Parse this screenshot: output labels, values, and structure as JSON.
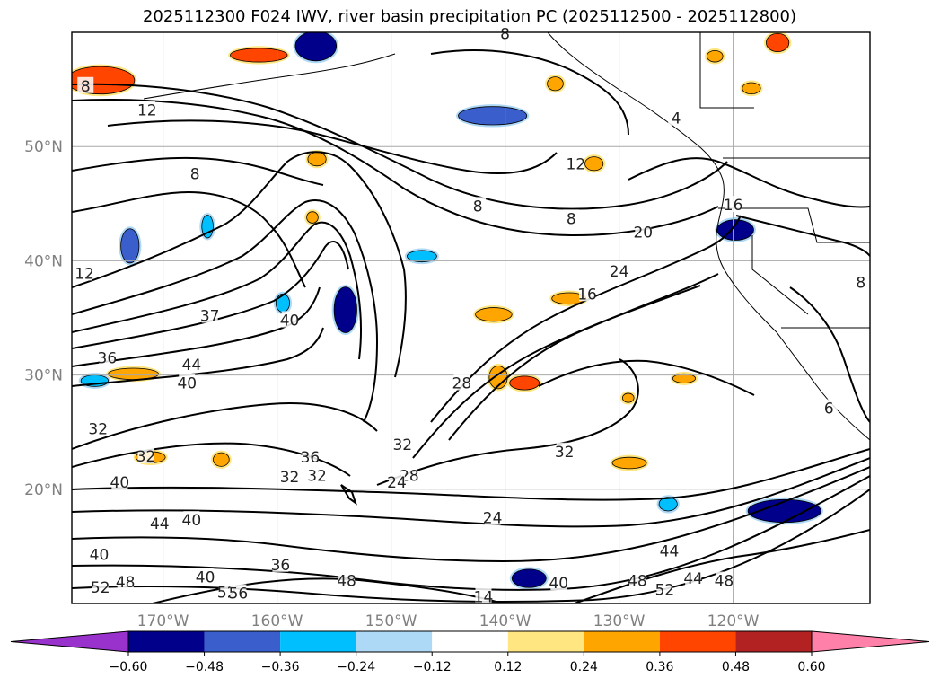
{
  "chart_data": {
    "type": "heatmap",
    "title": "2025112300 F024 IWV, river basin precipitation PC (2025112500 - 2025112800)",
    "x_axis": {
      "unit": "longitude",
      "range": [
        -178,
        -108
      ],
      "ticks": [
        -170,
        -160,
        -150,
        -140,
        -130,
        -120
      ],
      "tick_labels": [
        "170°W",
        "160°W",
        "150°W",
        "140°W",
        "130°W",
        "120°W"
      ]
    },
    "y_axis": {
      "unit": "latitude",
      "range": [
        10,
        60
      ],
      "ticks": [
        20,
        30,
        40,
        50
      ],
      "tick_labels": [
        "20°N",
        "30°N",
        "40°N",
        "50°N"
      ]
    },
    "grid": true,
    "colorbar": {
      "orientation": "horizontal",
      "extend": "both",
      "bounds": [
        -0.6,
        -0.48,
        -0.36,
        -0.24,
        -0.12,
        0.12,
        0.24,
        0.36,
        0.48,
        0.6
      ],
      "tick_labels": [
        "−0.60",
        "−0.48",
        "−0.36",
        "−0.24",
        "−0.12",
        "0.12",
        "0.24",
        "0.36",
        "0.48",
        "0.60"
      ],
      "colors": [
        "#9932CC",
        "#00008B",
        "#3A5FCD",
        "#00BFFF",
        "#ADD8F6",
        "#FFFFFF",
        "#FFE680",
        "#FFA500",
        "#FF4500",
        "#B22222",
        "#FF80A8"
      ]
    },
    "contour_labels": [
      {
        "text": "8",
        "lon": -176.8,
        "lat": 55.3
      },
      {
        "text": "12",
        "lon": -171.4,
        "lat": 53.2
      },
      {
        "text": "8",
        "lon": -167.2,
        "lat": 47.6
      },
      {
        "text": "12",
        "lon": -176.9,
        "lat": 38.9
      },
      {
        "text": "36",
        "lon": -174.9,
        "lat": 31.5
      },
      {
        "text": "44",
        "lon": -167.5,
        "lat": 30.9
      },
      {
        "text": "40",
        "lon": -167.9,
        "lat": 29.3
      },
      {
        "text": "37",
        "lon": -165.9,
        "lat": 35.2
      },
      {
        "text": "40",
        "lon": -158.9,
        "lat": 34.8
      },
      {
        "text": "32",
        "lon": -175.7,
        "lat": 25.3
      },
      {
        "text": "32",
        "lon": -171.5,
        "lat": 22.9
      },
      {
        "text": "40",
        "lon": -173.8,
        "lat": 20.6
      },
      {
        "text": "36",
        "lon": -157.1,
        "lat": 22.8
      },
      {
        "text": "32",
        "lon": -158.9,
        "lat": 21.1
      },
      {
        "text": "32",
        "lon": -156.5,
        "lat": 21.2
      },
      {
        "text": "32",
        "lon": -149.0,
        "lat": 23.9
      },
      {
        "text": "28",
        "lon": -148.4,
        "lat": 21.2
      },
      {
        "text": "24",
        "lon": -149.5,
        "lat": 20.6
      },
      {
        "text": "44",
        "lon": -170.3,
        "lat": 17.0
      },
      {
        "text": "40",
        "lon": -167.5,
        "lat": 17.3
      },
      {
        "text": "40",
        "lon": -175.6,
        "lat": 14.3
      },
      {
        "text": "52",
        "lon": -175.5,
        "lat": 11.4
      },
      {
        "text": "48",
        "lon": -173.3,
        "lat": 11.9
      },
      {
        "text": "40",
        "lon": -166.3,
        "lat": 12.3
      },
      {
        "text": "36",
        "lon": -159.7,
        "lat": 13.4
      },
      {
        "text": "52",
        "lon": -164.4,
        "lat": 11.0
      },
      {
        "text": "56",
        "lon": -163.4,
        "lat": 10.9
      },
      {
        "text": "48",
        "lon": -153.9,
        "lat": 12.0
      },
      {
        "text": "24",
        "lon": -141.1,
        "lat": 17.5
      },
      {
        "text": "14",
        "lon": -141.9,
        "lat": 10.6
      },
      {
        "text": "40",
        "lon": -135.3,
        "lat": 11.8
      },
      {
        "text": "48",
        "lon": -128.4,
        "lat": 12.0
      },
      {
        "text": "52",
        "lon": -126.0,
        "lat": 11.2
      },
      {
        "text": "44",
        "lon": -123.5,
        "lat": 12.2
      },
      {
        "text": "48",
        "lon": -120.8,
        "lat": 12.0
      },
      {
        "text": "44",
        "lon": -125.6,
        "lat": 14.6
      },
      {
        "text": "28",
        "lon": -143.8,
        "lat": 29.3
      },
      {
        "text": "32",
        "lon": -134.8,
        "lat": 23.3
      },
      {
        "text": "16",
        "lon": -132.8,
        "lat": 37.1
      },
      {
        "text": "24",
        "lon": -130.0,
        "lat": 39.1
      },
      {
        "text": "20",
        "lon": -127.9,
        "lat": 42.5
      },
      {
        "text": "12",
        "lon": -133.8,
        "lat": 48.5
      },
      {
        "text": "8",
        "lon": -134.2,
        "lat": 43.7
      },
      {
        "text": "8",
        "lon": -142.4,
        "lat": 44.8
      },
      {
        "text": "16",
        "lon": -120.0,
        "lat": 44.9
      },
      {
        "text": "8",
        "lon": -108.8,
        "lat": 38.1
      },
      {
        "text": "6",
        "lon": -111.6,
        "lat": 27.1
      },
      {
        "text": "8",
        "lon": -140.0,
        "lat": 59.9
      },
      {
        "text": "4",
        "lon": -125.0,
        "lat": 52.5
      }
    ],
    "precip_pc_patches": [
      {
        "lon": -156.6,
        "lat": 58.8,
        "rx": 1.8,
        "ry": 1.3,
        "value": -0.5
      },
      {
        "lon": -141.1,
        "lat": 52.7,
        "rx": 3.0,
        "ry": 0.8,
        "value": -0.4
      },
      {
        "lon": -154.0,
        "lat": 35.7,
        "rx": 1.0,
        "ry": 2.0,
        "value": -0.5
      },
      {
        "lon": -119.8,
        "lat": 42.7,
        "rx": 1.6,
        "ry": 0.9,
        "value": -0.5
      },
      {
        "lon": -115.5,
        "lat": 18.1,
        "rx": 3.2,
        "ry": 1.0,
        "value": -0.6
      },
      {
        "lon": -137.9,
        "lat": 12.2,
        "rx": 1.5,
        "ry": 0.8,
        "value": -0.5
      },
      {
        "lon": -172.9,
        "lat": 41.3,
        "rx": 0.8,
        "ry": 1.5,
        "value": -0.4
      },
      {
        "lon": -176.0,
        "lat": 29.5,
        "rx": 1.2,
        "ry": 0.5,
        "value": -0.3
      },
      {
        "lon": -147.3,
        "lat": 40.4,
        "rx": 1.3,
        "ry": 0.5,
        "value": -0.25
      },
      {
        "lon": -166.1,
        "lat": 43.0,
        "rx": 0.5,
        "ry": 1.0,
        "value": -0.3
      },
      {
        "lon": -159.5,
        "lat": 36.3,
        "rx": 0.6,
        "ry": 0.8,
        "value": -0.3
      },
      {
        "lon": -125.7,
        "lat": 18.7,
        "rx": 0.8,
        "ry": 0.6,
        "value": -0.25
      },
      {
        "lon": -161.6,
        "lat": 58.0,
        "rx": 2.5,
        "ry": 0.6,
        "value": 0.4
      },
      {
        "lon": -175.5,
        "lat": 55.8,
        "rx": 3.0,
        "ry": 1.2,
        "value": 0.45
      },
      {
        "lon": -156.5,
        "lat": 48.9,
        "rx": 0.8,
        "ry": 0.6,
        "value": 0.35
      },
      {
        "lon": -172.6,
        "lat": 30.1,
        "rx": 2.2,
        "ry": 0.5,
        "value": 0.35
      },
      {
        "lon": -164.9,
        "lat": 22.6,
        "rx": 0.7,
        "ry": 0.6,
        "value": 0.35
      },
      {
        "lon": -171.1,
        "lat": 22.8,
        "rx": 1.3,
        "ry": 0.5,
        "value": 0.3
      },
      {
        "lon": -140.6,
        "lat": 29.8,
        "rx": 0.8,
        "ry": 1.0,
        "value": 0.35
      },
      {
        "lon": -138.3,
        "lat": 29.3,
        "rx": 1.3,
        "ry": 0.6,
        "value": 0.4
      },
      {
        "lon": -129.1,
        "lat": 22.3,
        "rx": 1.5,
        "ry": 0.5,
        "value": 0.3
      },
      {
        "lon": -134.4,
        "lat": 36.7,
        "rx": 1.5,
        "ry": 0.5,
        "value": 0.3
      },
      {
        "lon": -141.0,
        "lat": 35.3,
        "rx": 1.6,
        "ry": 0.6,
        "value": 0.35
      },
      {
        "lon": -116.1,
        "lat": 59.1,
        "rx": 1.0,
        "ry": 0.8,
        "value": 0.45
      },
      {
        "lon": -121.6,
        "lat": 57.9,
        "rx": 0.7,
        "ry": 0.5,
        "value": 0.35
      },
      {
        "lon": -118.4,
        "lat": 55.1,
        "rx": 0.8,
        "ry": 0.5,
        "value": 0.3
      },
      {
        "lon": -132.2,
        "lat": 48.5,
        "rx": 0.8,
        "ry": 0.6,
        "value": 0.3
      },
      {
        "lon": -135.6,
        "lat": 55.5,
        "rx": 0.7,
        "ry": 0.6,
        "value": 0.3
      },
      {
        "lon": -156.9,
        "lat": 43.8,
        "rx": 0.5,
        "ry": 0.5,
        "value": 0.35
      },
      {
        "lon": -124.3,
        "lat": 29.7,
        "rx": 1.0,
        "ry": 0.4,
        "value": 0.3
      },
      {
        "lon": -129.2,
        "lat": 28.0,
        "rx": 0.5,
        "ry": 0.4,
        "value": 0.3
      }
    ]
  }
}
